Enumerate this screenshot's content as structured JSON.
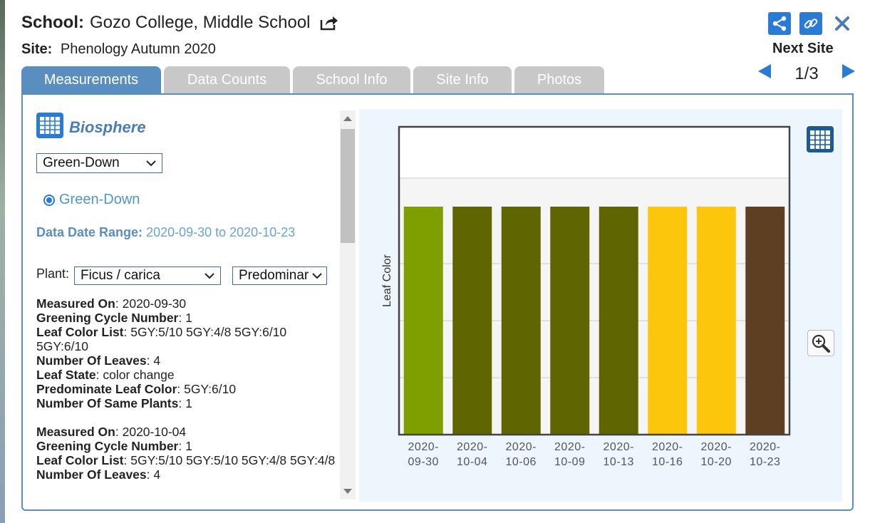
{
  "header": {
    "school_label": "School:",
    "school_name": "Gozo College, Middle School",
    "site_label": "Site:",
    "site_name": "Phenology Autumn 2020",
    "next_site_label": "Next Site",
    "pager": "1/3"
  },
  "tabs": [
    "Measurements",
    "Data Counts",
    "School Info",
    "Site Info",
    "Photos"
  ],
  "biosphere": {
    "title": "Biosphere",
    "protocol_select": "Green-Down",
    "radio_label": "Green-Down",
    "date_range_label": "Data Date Range:",
    "date_range_value": "2020-09-30 to 2020-10-23",
    "plant_label": "Plant:",
    "plant_select": "Ficus / carica",
    "color_select": "Predominar"
  },
  "records": [
    {
      "measured_on_label": "Measured On",
      "measured_on": ": 2020-09-30",
      "cycle_label": "Greening Cycle Number",
      "cycle": ": 1",
      "color_list_label": "Leaf Color List",
      "color_list": ": 5GY:5/10 5GY:4/8 5GY:6/10 5GY:6/10",
      "leaves_label": "Number Of Leaves",
      "leaves": ": 4",
      "state_label": "Leaf State",
      "state": ": color change",
      "predominate_label": "Predominate Leaf Color",
      "predominate": ": 5GY:6/10",
      "same_label": "Number Of Same Plants",
      "same": ": 1"
    },
    {
      "measured_on_label": "Measured On",
      "measured_on": ": 2020-10-04",
      "cycle_label": "Greening Cycle Number",
      "cycle": ": 1",
      "color_list_label": "Leaf Color List",
      "color_list": ": 5GY:5/10 5GY:5/10 5GY:4/8 5GY:4/8",
      "leaves_label": "Number Of Leaves",
      "leaves": ": 4"
    }
  ],
  "chart_data": {
    "type": "bar",
    "ylabel": "Leaf Color",
    "categories": [
      [
        "2020-",
        "09-30"
      ],
      [
        "2020-",
        "10-04"
      ],
      [
        "2020-",
        "10-06"
      ],
      [
        "2020-",
        "10-09"
      ],
      [
        "2020-",
        "10-13"
      ],
      [
        "2020-",
        "10-16"
      ],
      [
        "2020-",
        "10-20"
      ],
      [
        "2020-",
        "10-23"
      ]
    ],
    "values": [
      1,
      1,
      1,
      1,
      1,
      1,
      1,
      1
    ],
    "ylim": [
      0,
      1.35
    ],
    "bar_colors": [
      "#7f9f00",
      "#5f6500",
      "#5f6500",
      "#5f6500",
      "#5f6500",
      "#fbc60c",
      "#fbc60c",
      "#5e3f22"
    ],
    "grid": true,
    "plot_bg_bands": [
      "#ffffff",
      "#f5f5f5"
    ]
  },
  "colors": {
    "accent": "#5b8ec0",
    "tab_inactive": "#c8c8c8",
    "icon_blue": "#2a7bd5",
    "link_blue": "#4f96c9"
  }
}
